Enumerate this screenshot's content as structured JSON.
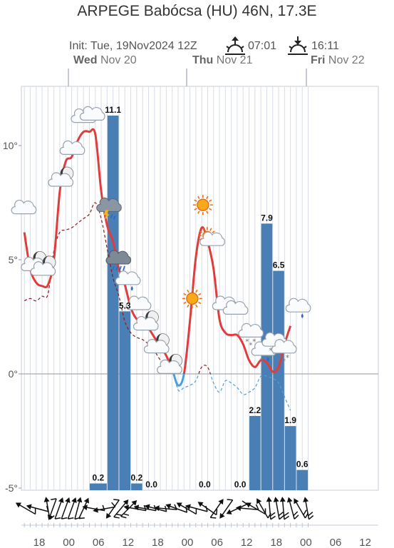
{
  "header": {
    "title": "ARPEGE Babócsa (HU) 46N, 17.3E",
    "init": "Init: Tue, 19Nov2024 12Z",
    "sunrise": "07:01",
    "sunset": "16:11"
  },
  "days": [
    {
      "weekday": "Wed",
      "date": "Nov 20"
    },
    {
      "weekday": "Thu",
      "date": "Nov 21"
    },
    {
      "weekday": "Fri",
      "date": "Nov 22"
    }
  ],
  "chart_data": {
    "type": "line",
    "x_unit": "hours since 2024-11-19 12Z",
    "x_range": [
      3.5,
      52.5
    ],
    "ylim": [
      -5,
      13
    ],
    "y_ticks": [
      "-5°",
      "0°",
      "5°",
      "10°"
    ],
    "x_tick_labels": [
      {
        "t": 6,
        "label": "18"
      },
      {
        "t": 12,
        "label": "00"
      },
      {
        "t": 18,
        "label": "06"
      },
      {
        "t": 24,
        "label": "12"
      },
      {
        "t": 30,
        "label": "18"
      },
      {
        "t": 36,
        "label": "00"
      },
      {
        "t": 42,
        "label": "06"
      },
      {
        "t": 48,
        "label": "12"
      },
      {
        "t": 54,
        "label": "18"
      },
      {
        "t": 60,
        "label": "00"
      },
      {
        "t": 66,
        "label": "06"
      },
      {
        "t": 72,
        "label": "12"
      }
    ],
    "temperature": [
      [
        4,
        6.2
      ],
      [
        5,
        4.6
      ],
      [
        6,
        4.0
      ],
      [
        7,
        3.85
      ],
      [
        8,
        3.9
      ],
      [
        9,
        5.0
      ],
      [
        10,
        8.0
      ],
      [
        11,
        9.3
      ],
      [
        12,
        9.5
      ],
      [
        13,
        10.2
      ],
      [
        14,
        10.6
      ],
      [
        15,
        10.6
      ],
      [
        16,
        10.5
      ],
      [
        17,
        8.0
      ],
      [
        18,
        6.5
      ],
      [
        19,
        5.8
      ],
      [
        20,
        4.6
      ],
      [
        21,
        3.9
      ],
      [
        22,
        2.9
      ],
      [
        23,
        2.4
      ],
      [
        24,
        2.3
      ],
      [
        25,
        2.0
      ],
      [
        26,
        1.6
      ],
      [
        27,
        1.2
      ],
      [
        28,
        0.8
      ],
      [
        29,
        0.2
      ],
      [
        30,
        -0.5
      ],
      [
        31,
        0.0
      ],
      [
        32,
        2.3
      ],
      [
        33,
        5.1
      ],
      [
        34,
        6.4
      ],
      [
        35,
        5.8
      ],
      [
        36,
        4.6
      ],
      [
        37,
        2.4
      ],
      [
        38,
        1.8
      ],
      [
        39,
        1.7
      ],
      [
        40,
        1.7
      ],
      [
        41,
        1.3
      ],
      [
        42,
        0.6
      ],
      [
        43,
        0.3
      ],
      [
        44,
        0.6
      ],
      [
        45,
        0.5
      ],
      [
        46,
        0.1
      ],
      [
        47,
        0.3
      ],
      [
        48,
        1.3
      ],
      [
        49,
        2.1
      ]
    ],
    "dewpoint": [
      [
        4,
        3.2
      ],
      [
        5,
        3.3
      ],
      [
        6,
        3.2
      ],
      [
        7,
        3.4
      ],
      [
        8,
        3.5
      ],
      [
        9,
        5.4
      ],
      [
        10,
        6.2
      ],
      [
        11,
        6.3
      ],
      [
        12,
        6.4
      ],
      [
        13,
        6.6
      ],
      [
        14,
        6.8
      ],
      [
        15,
        7.0
      ],
      [
        16,
        7.5
      ],
      [
        17,
        6.8
      ],
      [
        18,
        5.5
      ],
      [
        19,
        4.2
      ],
      [
        20,
        3.4
      ],
      [
        21,
        2.3
      ],
      [
        22,
        1.8
      ],
      [
        23,
        1.6
      ],
      [
        24,
        1.5
      ],
      [
        25,
        1.3
      ],
      [
        26,
        1.0
      ],
      [
        27,
        0.6
      ],
      [
        28,
        0.2
      ],
      [
        29,
        0.3
      ],
      [
        30,
        -0.7
      ],
      [
        31,
        -0.6
      ],
      [
        32,
        -0.5
      ],
      [
        33,
        -0.3
      ],
      [
        34,
        0.3
      ],
      [
        35,
        0.3
      ],
      [
        36,
        -0.4
      ],
      [
        37,
        -0.8
      ],
      [
        38,
        -0.3
      ],
      [
        39,
        -0.4
      ],
      [
        40,
        -0.6
      ],
      [
        41,
        -0.9
      ],
      [
        42,
        -0.8
      ],
      [
        43,
        -0.6
      ],
      [
        44,
        -0.1
      ],
      [
        45,
        -0.1
      ],
      [
        46,
        -0.2
      ],
      [
        47,
        -0.4
      ],
      [
        48,
        -1.0
      ],
      [
        49,
        -1.6
      ]
    ],
    "precipitation_bars": [
      {
        "start": 15,
        "end": 18,
        "value": 0.2,
        "label": "0.2"
      },
      {
        "start": 18,
        "end": 20,
        "value": 11.1,
        "label": "11.1"
      },
      {
        "start": 20,
        "end": 22,
        "value": 5.3,
        "label": "5.3"
      },
      {
        "start": 22,
        "end": 24,
        "value": 0.2,
        "label": "0.2"
      },
      {
        "start": 24,
        "end": 27,
        "value": 0.0,
        "label": "0.0"
      },
      {
        "start": 33,
        "end": 36,
        "value": 0.0,
        "label": "0.0"
      },
      {
        "start": 39,
        "end": 42,
        "value": 0.0,
        "label": "0.0"
      },
      {
        "start": 42,
        "end": 44,
        "value": 2.2,
        "label": "2.2"
      },
      {
        "start": 44,
        "end": 46,
        "value": 7.9,
        "label": "7.9"
      },
      {
        "start": 46,
        "end": 48,
        "value": 6.5,
        "label": "6.5"
      },
      {
        "start": 48,
        "end": 50,
        "value": 1.9,
        "label": "1.9"
      },
      {
        "start": 50,
        "end": 52,
        "value": 0.6,
        "label": "0.6"
      }
    ],
    "weather_icons": [
      {
        "t": 4,
        "temp": 7.2,
        "icon": "cloud-icon"
      },
      {
        "t": 6,
        "temp": 4.8,
        "icon": "moon-cloud-icon"
      },
      {
        "t": 7.6,
        "temp": 4.6,
        "icon": "moon-cloud-icon"
      },
      {
        "t": 10.6,
        "temp": 8.5,
        "icon": "moon-cloud-icon"
      },
      {
        "t": 12.2,
        "temp": 9.8,
        "icon": "cloud-icon"
      },
      {
        "t": 14.1,
        "temp": 11.2,
        "icon": "cloud-icon"
      },
      {
        "t": 15.6,
        "temp": 11.3,
        "icon": "cloud-icon"
      },
      {
        "t": 18.4,
        "temp": 7.3,
        "icon": "thunder-rain-icon"
      },
      {
        "t": 20.0,
        "temp": 5.0,
        "icon": "heavy-rain-icon"
      },
      {
        "t": 21.6,
        "temp": 4.1,
        "icon": "light-rain-icon"
      },
      {
        "t": 23.4,
        "temp": 3.0,
        "icon": "cloud-icon"
      },
      {
        "t": 25.0,
        "temp": 2.2,
        "icon": "moon-cloud-icon"
      },
      {
        "t": 26.8,
        "temp": 1.2,
        "icon": "moon-cloud-icon"
      },
      {
        "t": 29.0,
        "temp": 0.3,
        "icon": "moon-cloud-icon"
      },
      {
        "t": 32.4,
        "temp": 3.3,
        "icon": "sun-icon"
      },
      {
        "t": 34.2,
        "temp": 7.4,
        "icon": "sun-icon"
      },
      {
        "t": 35.4,
        "temp": 5.9,
        "icon": "sun-cloud-icon"
      },
      {
        "t": 38.0,
        "temp": 3.0,
        "icon": "cloud-icon"
      },
      {
        "t": 39.8,
        "temp": 2.8,
        "icon": "cloud-icon"
      },
      {
        "t": 42.4,
        "temp": 1.8,
        "icon": "snow-cloud-icon"
      },
      {
        "t": 44.6,
        "temp": 1.0,
        "icon": "sleet-cloud-icon"
      },
      {
        "t": 46.4,
        "temp": 1.4,
        "icon": "snow-cloud-icon"
      },
      {
        "t": 48.0,
        "temp": 1.1,
        "icon": "snow-cloud-icon"
      },
      {
        "t": 50.4,
        "temp": 2.9,
        "icon": "light-rain-icon"
      }
    ],
    "wind_barbs": [
      {
        "t": 4.3,
        "dir": 300,
        "speed": 10
      },
      {
        "t": 6.3,
        "dir": 285,
        "speed": 10
      },
      {
        "t": 8.0,
        "dir": 350,
        "speed": 5
      },
      {
        "t": 8.8,
        "dir": 200,
        "speed": 10
      },
      {
        "t": 9.8,
        "dir": 20,
        "speed": 10
      },
      {
        "t": 10.9,
        "dir": 20,
        "speed": 10
      },
      {
        "t": 12.0,
        "dir": 20,
        "speed": 10
      },
      {
        "t": 13.0,
        "dir": 15,
        "speed": 10
      },
      {
        "t": 14.0,
        "dir": 25,
        "speed": 10
      },
      {
        "t": 15.8,
        "dir": 280,
        "speed": 10
      },
      {
        "t": 17.6,
        "dir": 260,
        "speed": 10
      },
      {
        "t": 19.0,
        "dir": 215,
        "speed": 10
      },
      {
        "t": 20.3,
        "dir": 40,
        "speed": 15
      },
      {
        "t": 21.6,
        "dir": 45,
        "speed": 15
      },
      {
        "t": 22.8,
        "dir": 280,
        "speed": 10
      },
      {
        "t": 24.5,
        "dir": 280,
        "speed": 10
      },
      {
        "t": 26.3,
        "dir": 285,
        "speed": 10
      },
      {
        "t": 28.0,
        "dir": 275,
        "speed": 10
      },
      {
        "t": 29.8,
        "dir": 290,
        "speed": 10
      },
      {
        "t": 31.5,
        "dir": 300,
        "speed": 10
      },
      {
        "t": 33.2,
        "dir": 285,
        "speed": 10
      },
      {
        "t": 35.0,
        "dir": 305,
        "speed": 10
      },
      {
        "t": 36.5,
        "dir": 35,
        "speed": 10
      },
      {
        "t": 38.2,
        "dir": 215,
        "speed": 10
      },
      {
        "t": 40.0,
        "dir": 245,
        "speed": 10
      },
      {
        "t": 41.8,
        "dir": 275,
        "speed": 10
      },
      {
        "t": 43.2,
        "dir": 300,
        "speed": 10
      },
      {
        "t": 44.3,
        "dir": 330,
        "speed": 10
      },
      {
        "t": 45.5,
        "dir": 355,
        "speed": 15
      },
      {
        "t": 46.8,
        "dir": 350,
        "speed": 15
      },
      {
        "t": 47.8,
        "dir": 355,
        "speed": 15
      },
      {
        "t": 49.2,
        "dir": 345,
        "speed": 15
      },
      {
        "t": 50.6,
        "dir": 330,
        "speed": 15
      },
      {
        "t": 51.8,
        "dir": 350,
        "speed": 15
      }
    ],
    "colors": {
      "temperature": "#e03c3c",
      "dewpoint": "#8b1a1a",
      "below_zero": "#4a9fe0",
      "bars": "#4a7fb5",
      "grid": "#d8dde8",
      "zero_line": "#aaaaaa"
    }
  }
}
